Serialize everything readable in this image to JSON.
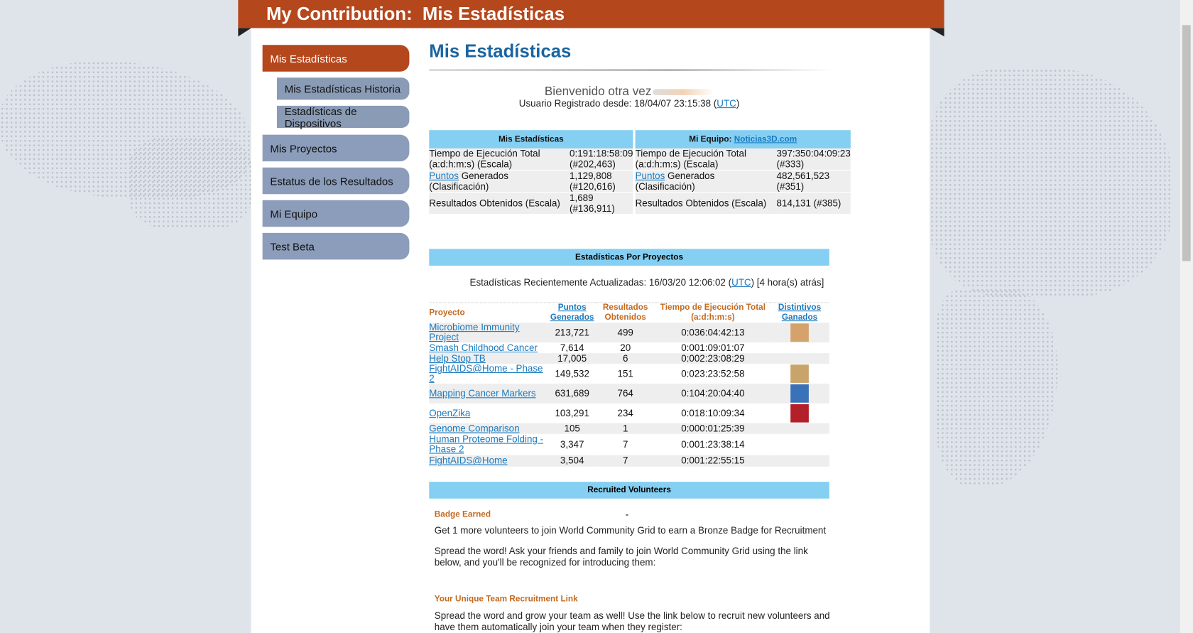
{
  "header": {
    "title": "My Contribution:  Mis Estadísticas"
  },
  "sidebar": {
    "items": [
      "Mis Estadísticas",
      "Mis Estadísticas Historia",
      "Estadísticas de Dispositivos",
      "Mis Proyectos",
      "Estatus de los Resultados",
      "Mi Equipo",
      "Test Beta"
    ]
  },
  "page": {
    "heading": "Mis Estadísticas",
    "welcome": "Bienvenido otra vez",
    "registered": "Usuario Registrado desde: 18/04/07 23:15:38 (",
    "registered_link": "UTC",
    "registered_end": ")"
  },
  "my_stats": {
    "title": "Mis Estadísticas",
    "rows": [
      {
        "label": "Tiempo de Ejecución Total (a:d:h:m:s) (Escala)",
        "value": "0:191:18:58:09 (#202,463)"
      },
      {
        "link": "Puntos",
        "label": " Generados (Clasificación)",
        "value": "1,129,808 (#120,616)"
      },
      {
        "label": "Resultados Obtenidos (Escala)",
        "value": "1,689 (#136,911)"
      }
    ]
  },
  "team_stats": {
    "title": "Mi Equipo: ",
    "team_link": "Noticias3D.com",
    "rows": [
      {
        "label": "Tiempo de Ejecución Total (a:d:h:m:s) (Escala)",
        "value": "397:350:04:09:23 (#333)"
      },
      {
        "link": "Puntos",
        "label": " Generados (Clasificación)",
        "value": "482,561,523 (#351)"
      },
      {
        "label": "Resultados Obtenidos (Escala)",
        "value": "814,131 (#385)"
      }
    ]
  },
  "projects": {
    "title": "Estadísticas Por Proyectos",
    "updated": "Estadísticas Recientemente Actualizadas: 16/03/20 12:06:02 (",
    "updated_link": "UTC",
    "updated_end": ") [4 hora(s) atrás]",
    "columns": [
      "Proyecto",
      "Puntos Generados",
      "Resultados Obtenidos",
      "Tiempo de Ejecución Total (a:d:h:m:s)",
      "Distintivos Ganados"
    ],
    "rows": [
      [
        "Microbiome Immunity Project",
        "213,721",
        "499",
        "0:036:04:42:13"
      ],
      [
        "Smash Childhood Cancer",
        "7,614",
        "20",
        "0:001:09:01:07"
      ],
      [
        "Help Stop TB",
        "17,005",
        "6",
        "0:002:23:08:29"
      ],
      [
        "FightAIDS@Home - Phase 2",
        "149,532",
        "151",
        "0:023:23:52:58"
      ],
      [
        "Mapping Cancer Markers",
        "631,689",
        "764",
        "0:104:20:04:40"
      ],
      [
        "OpenZika",
        "103,291",
        "234",
        "0:018:10:09:34"
      ],
      [
        "Genome Comparison",
        "105",
        "1",
        "0:000:01:25:39"
      ],
      [
        "Human Proteome Folding - Phase 2",
        "3,347",
        "7",
        "0:001:23:38:14"
      ],
      [
        "FightAIDS@Home",
        "3,504",
        "7",
        "0:001:22:55:15"
      ]
    ]
  },
  "recruited": {
    "title": "Recruited Volunteers",
    "badge_label": "Badge Earned",
    "badge_value": "-",
    "text1": "Get 1 more volunteers to join World Community Grid to earn a Bronze Badge for Recruitment",
    "text2": "Spread the word! Ask your friends and family to join World Community Grid using the link below, and you'll be recognized for introducing them:",
    "link_label": "Your Unique Team Recruitment Link",
    "text3": "Spread the word and grow your team as well! Use the link below to recruit new volunteers and have them automatically join your team when they register:"
  }
}
